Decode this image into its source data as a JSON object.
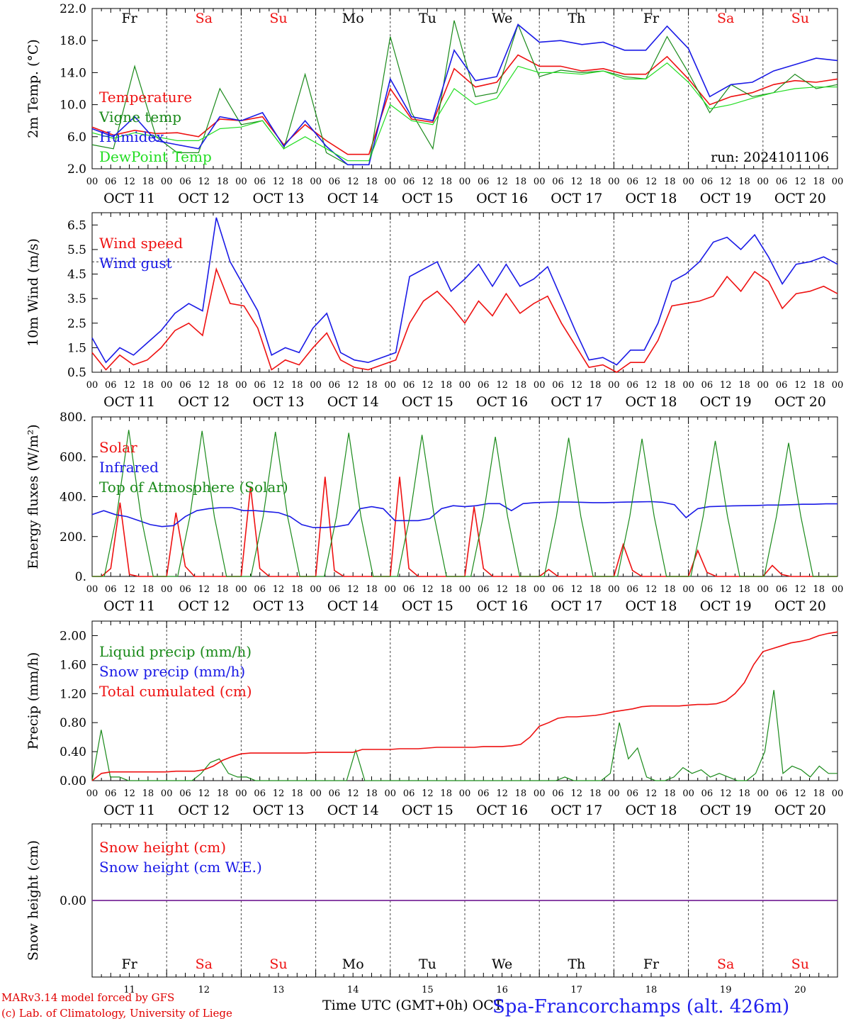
{
  "colors": {
    "red": "#ee1111",
    "dark_green": "#1a8a1a",
    "blue": "#1a1ae6",
    "light_green": "#22dd22",
    "purple": "#7a2a9a",
    "weekend": "#ee1111",
    "weekday": "#000000"
  },
  "axis": {
    "hours_labels": [
      "00",
      "06",
      "12",
      "18"
    ],
    "date_labels": [
      "OCT 11",
      "OCT 12",
      "OCT 13",
      "OCT 14",
      "OCT 15",
      "OCT 16",
      "OCT 17",
      "OCT 18",
      "OCT 19",
      "OCT 20"
    ],
    "day_names": [
      "Fr",
      "Sa",
      "Su",
      "Mo",
      "Tu",
      "We",
      "Th",
      "Fr",
      "Sa",
      "Su"
    ],
    "weekend_flags": [
      false,
      true,
      true,
      false,
      false,
      false,
      false,
      false,
      true,
      true
    ],
    "day_numbers": [
      "11",
      "12",
      "13",
      "14",
      "15",
      "16",
      "17",
      "18",
      "19",
      "20"
    ],
    "xlabel": "Time UTC (GMT+0h) OCT"
  },
  "footer": {
    "model": "MARv3.14 model forced by GFS",
    "credit": "(c) Lab. of Climatology, University of Liege",
    "station": "Spa-Francorchamps (alt. 426m)"
  },
  "chart_data": [
    {
      "type": "line",
      "ylabel": "2m Temp. (°C)",
      "ylim": [
        2.0,
        22.0
      ],
      "yticks": [
        "2.0",
        "6.0",
        "10.0",
        "14.0",
        "18.0",
        "22.0"
      ],
      "annotation": "run: 2024101106",
      "x_unit": "hours since 2024-10-11 00 UTC",
      "x_step_hours": 6,
      "series": [
        {
          "name": "Temperature",
          "color_key": "red",
          "values": [
            7.2,
            6.2,
            6.8,
            6.4,
            6.5,
            6.0,
            8.2,
            8.0,
            8.5,
            5.0,
            7.5,
            5.5,
            3.8,
            3.8,
            12.0,
            8.2,
            7.8,
            14.5,
            12.2,
            12.8,
            16.2,
            14.8,
            14.8,
            14.2,
            14.5,
            13.8,
            13.8,
            16.0,
            13.2,
            10.0,
            11.0,
            11.5,
            12.5,
            13.0,
            12.8,
            13.2
          ]
        },
        {
          "name": "Vigne temp",
          "color_key": "dark_green",
          "values": [
            5.0,
            4.5,
            14.8,
            6.0,
            4.0,
            4.0,
            12.0,
            7.5,
            8.0,
            4.5,
            13.8,
            4.0,
            2.5,
            2.5,
            18.5,
            9.0,
            4.5,
            20.5,
            11.0,
            11.5,
            20.0,
            13.5,
            14.3,
            14.0,
            14.2,
            13.5,
            13.2,
            18.5,
            14.0,
            9.0,
            12.5,
            11.0,
            11.5,
            13.8,
            12.0,
            12.5
          ]
        },
        {
          "name": "Humidex",
          "color_key": "blue",
          "values": [
            7.0,
            6.0,
            8.5,
            5.5,
            5.0,
            4.5,
            8.5,
            8.0,
            9.0,
            4.8,
            8.0,
            4.8,
            2.5,
            2.5,
            13.2,
            8.5,
            8.0,
            16.8,
            13.0,
            13.5,
            20.0,
            17.8,
            18.0,
            17.5,
            17.8,
            16.8,
            16.8,
            19.8,
            17.0,
            11.0,
            12.5,
            12.8,
            14.2,
            15.0,
            15.8,
            15.5
          ]
        },
        {
          "name": "DewPoint Temp",
          "color_key": "light_green",
          "values": [
            6.5,
            5.8,
            6.5,
            6.0,
            5.5,
            5.5,
            7.0,
            7.2,
            8.0,
            4.5,
            6.0,
            4.5,
            3.0,
            3.0,
            10.0,
            8.0,
            7.5,
            12.0,
            10.0,
            10.8,
            14.8,
            14.0,
            14.0,
            13.8,
            14.2,
            13.2,
            13.2,
            15.2,
            12.8,
            9.5,
            10.0,
            10.8,
            11.5,
            12.0,
            12.2,
            12.2
          ]
        }
      ]
    },
    {
      "type": "line",
      "ylabel": "10m Wind (m/s)",
      "ylim": [
        0.5,
        7.0
      ],
      "yticks": [
        "0.5",
        "1.5",
        "2.5",
        "3.5",
        "4.5",
        "5.5",
        "6.5"
      ],
      "reference_line": 5.0,
      "x_step_hours": 6,
      "series": [
        {
          "name": "Wind speed",
          "color_key": "red",
          "values": [
            1.3,
            0.6,
            1.2,
            0.8,
            1.0,
            1.5,
            2.2,
            2.5,
            2.0,
            4.7,
            3.3,
            3.2,
            2.3,
            0.6,
            1.0,
            0.8,
            1.5,
            2.1,
            1.0,
            0.7,
            0.6,
            0.8,
            1.0,
            2.5,
            3.4,
            3.8,
            3.2,
            2.5,
            3.4,
            2.8,
            3.7,
            2.9,
            3.3,
            3.6,
            2.5,
            1.6,
            0.7,
            0.8,
            0.5,
            0.9,
            0.9,
            1.8,
            3.2,
            3.3,
            3.4,
            3.6,
            4.4,
            3.8,
            4.6,
            4.2,
            3.1,
            3.7,
            3.8,
            4.0,
            3.7
          ]
        },
        {
          "name": "Wind gust",
          "color_key": "blue",
          "values": [
            1.9,
            0.9,
            1.5,
            1.2,
            1.7,
            2.2,
            2.9,
            3.3,
            3.0,
            6.8,
            5.0,
            4.0,
            3.0,
            1.2,
            1.5,
            1.3,
            2.3,
            2.9,
            1.3,
            1.0,
            0.9,
            1.1,
            1.3,
            4.4,
            4.7,
            5.0,
            3.8,
            4.3,
            4.9,
            4.0,
            4.9,
            4.0,
            4.3,
            4.8,
            3.5,
            2.2,
            1.0,
            1.1,
            0.8,
            1.4,
            1.4,
            2.5,
            4.2,
            4.5,
            5.0,
            5.8,
            6.0,
            5.5,
            6.1,
            5.2,
            4.1,
            4.9,
            5.0,
            5.2,
            4.9
          ]
        }
      ]
    },
    {
      "type": "line",
      "ylabel": "Energy fluxes (W/m²)",
      "ylim": [
        0,
        800
      ],
      "yticks": [
        "0.",
        "200.",
        "400.",
        "600.",
        "800."
      ],
      "x_step_hours": 3,
      "series": [
        {
          "name": "Solar",
          "color_key": "red",
          "values": [
            0,
            0,
            40,
            370,
            10,
            0,
            0,
            0,
            0,
            320,
            50,
            0,
            0,
            0,
            0,
            0,
            0,
            450,
            40,
            0,
            0,
            0,
            0,
            0,
            0,
            500,
            30,
            0,
            0,
            0,
            0,
            0,
            0,
            500,
            40,
            0,
            0,
            0,
            0,
            0,
            0,
            350,
            40,
            0,
            0,
            0,
            0,
            0,
            0,
            35,
            0,
            0,
            0,
            0,
            0,
            0,
            0,
            160,
            30,
            0,
            0,
            0,
            0,
            0,
            0,
            130,
            20,
            0,
            0,
            0,
            0,
            0,
            0,
            55,
            10,
            0,
            0,
            0,
            0,
            0,
            0
          ]
        },
        {
          "name": "Infrared",
          "color_key": "blue",
          "values": [
            310,
            330,
            310,
            300,
            280,
            260,
            250,
            255,
            300,
            330,
            340,
            345,
            345,
            330,
            330,
            325,
            320,
            300,
            260,
            245,
            245,
            250,
            260,
            340,
            350,
            340,
            280,
            280,
            280,
            290,
            340,
            355,
            350,
            355,
            365,
            365,
            330,
            365,
            370,
            372,
            373,
            373,
            372,
            370,
            370,
            372,
            373,
            374,
            375,
            372,
            360,
            295,
            340,
            350,
            352,
            354,
            355,
            356,
            358,
            358,
            360,
            362,
            362,
            364,
            364
          ]
        },
        {
          "name": "Top of Atmosphere (Solar)",
          "color_key": "dark_green",
          "values": [
            0,
            0,
            300,
            735,
            300,
            0,
            0,
            0,
            300,
            730,
            300,
            0,
            0,
            0,
            300,
            725,
            300,
            0,
            0,
            0,
            300,
            720,
            300,
            0,
            0,
            0,
            300,
            710,
            300,
            0,
            0,
            0,
            300,
            700,
            300,
            0,
            0,
            0,
            300,
            695,
            300,
            0,
            0,
            0,
            300,
            690,
            300,
            0,
            0,
            0,
            300,
            680,
            300,
            0,
            0,
            0,
            300,
            670,
            300,
            0,
            0,
            0
          ]
        }
      ]
    },
    {
      "type": "line",
      "ylabel": "Precip (mm/h)",
      "ylim": [
        0.0,
        2.2
      ],
      "yticks": [
        "0.00",
        "0.40",
        "0.80",
        "1.20",
        "1.60",
        "2.00"
      ],
      "x_step_hours": 3,
      "series": [
        {
          "name": "Liquid precip (mm/h)",
          "color_key": "dark_green",
          "values": [
            0,
            0.7,
            0.05,
            0.05,
            0,
            0,
            0,
            0,
            0,
            0,
            0,
            0,
            0.1,
            0.25,
            0.3,
            0.1,
            0.05,
            0.05,
            0,
            0,
            0,
            0,
            0,
            0,
            0,
            0,
            0,
            0,
            0,
            0.42,
            0,
            0,
            0,
            0,
            0,
            0,
            0,
            0,
            0,
            0,
            0,
            0,
            0,
            0,
            0,
            0,
            0,
            0,
            0,
            0,
            0,
            0,
            0.05,
            0,
            0,
            0,
            0,
            0.1,
            0.8,
            0.3,
            0.45,
            0.05,
            0,
            0,
            0.05,
            0.18,
            0.1,
            0.15,
            0.05,
            0.1,
            0.05,
            0,
            0,
            0.1,
            0.4,
            1.25,
            0.1,
            0.2,
            0.15,
            0.05,
            0.2,
            0.1,
            0.1
          ]
        },
        {
          "name": "Snow precip (mm/h)",
          "color_key": "blue",
          "values": []
        },
        {
          "name": "Total cumulated (cm)",
          "color_key": "red",
          "values": [
            0.0,
            0.1,
            0.12,
            0.12,
            0.12,
            0.12,
            0.12,
            0.12,
            0.12,
            0.13,
            0.13,
            0.13,
            0.15,
            0.2,
            0.28,
            0.33,
            0.37,
            0.38,
            0.38,
            0.38,
            0.38,
            0.38,
            0.38,
            0.38,
            0.39,
            0.39,
            0.39,
            0.39,
            0.39,
            0.43,
            0.43,
            0.43,
            0.43,
            0.44,
            0.44,
            0.44,
            0.45,
            0.46,
            0.46,
            0.46,
            0.46,
            0.46,
            0.47,
            0.47,
            0.47,
            0.48,
            0.5,
            0.6,
            0.75,
            0.8,
            0.86,
            0.88,
            0.88,
            0.89,
            0.9,
            0.92,
            0.95,
            0.97,
            0.99,
            1.02,
            1.03,
            1.03,
            1.03,
            1.03,
            1.04,
            1.05,
            1.05,
            1.06,
            1.1,
            1.2,
            1.35,
            1.6,
            1.78,
            1.82,
            1.86,
            1.9,
            1.92,
            1.95,
            2.0,
            2.03,
            2.05
          ]
        }
      ]
    },
    {
      "type": "line",
      "ylabel": "Snow height (cm)",
      "ylim": [
        -1.0,
        1.0
      ],
      "yticks": [
        "0.00"
      ],
      "series": [
        {
          "name": "Snow height (cm)",
          "color_key": "red",
          "values": [
            0.0,
            0.0
          ]
        },
        {
          "name": "Snow height (cm W.E.)",
          "color_key": "blue",
          "values": [
            0.0,
            0.0
          ]
        }
      ]
    }
  ]
}
